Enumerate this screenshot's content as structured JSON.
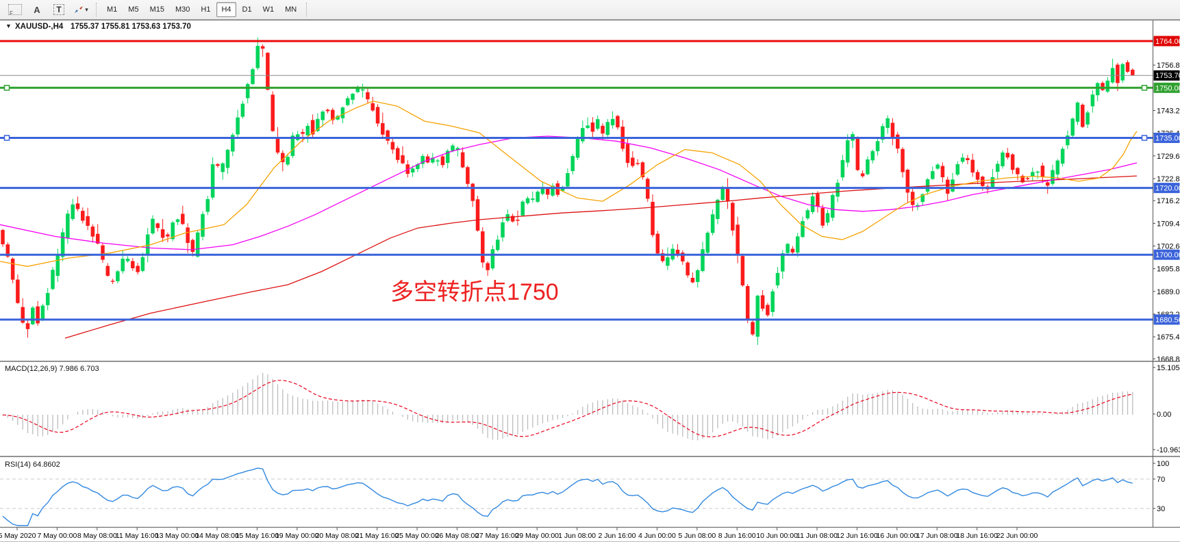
{
  "toolbar": {
    "template_icon_glyph": "F",
    "insert_text_glyph": "A",
    "text_label_glyph": "T",
    "dropdown_caret_glyph": "▾",
    "timeframes": [
      "M1",
      "M5",
      "M15",
      "M30",
      "H1",
      "H4",
      "D1",
      "W1",
      "MN"
    ],
    "active_timeframe": "H4"
  },
  "chart": {
    "collapse_glyph": "▼",
    "symbol_label": "XAUUSD-,H4",
    "ohlc_label": "1755.37 1755.81 1753.63 1753.70",
    "annotation": {
      "text": "多空转折点1750",
      "color": "#ee2020"
    },
    "current_price": {
      "label": "1753.70",
      "color": "#000000",
      "line_color": "#8c8c8c"
    },
    "levels": [
      {
        "label": "1764.00",
        "color": "#ee0b0b",
        "handles": false
      },
      {
        "label": "1750.00",
        "color": "#2fa12f",
        "handles": true
      },
      {
        "label": "1735.00",
        "color": "#3a63da",
        "handles": true
      },
      {
        "label": "1720.00",
        "color": "#3a63da",
        "handles": false
      },
      {
        "label": "1700.00",
        "color": "#3a63da",
        "handles": false
      },
      {
        "label": "1680.56",
        "color": "#3a63da",
        "handles": false
      }
    ],
    "y_ticks": [
      "1756.80",
      "1743.20",
      "1736.40",
      "1729.60",
      "1722.80",
      "1716.20",
      "1709.40",
      "1702.60",
      "1695.80",
      "1689.00",
      "1682.20",
      "1675.40",
      "1668.80"
    ],
    "x_labels": [
      "5 May 2020",
      "7 May 00:00",
      "8 May 08:00",
      "11 May 16:00",
      "13 May 00:00",
      "14 May 08:00",
      "15 May 16:00",
      "19 May 00:00",
      "20 May 08:00",
      "21 May 16:00",
      "25 May 00:00",
      "26 May 08:00",
      "27 May 16:00",
      "29 May 00:00",
      "1 Jun 08:00",
      "2 Jun 16:00",
      "4 Jun 00:00",
      "5 Jun 08:00",
      "8 Jun 16:00",
      "10 Jun 00:00",
      "11 Jun 08:00",
      "12 Jun 16:00",
      "16 Jun 00:00",
      "17 Jun 08:00",
      "18 Jun 16:00",
      "22 Jun 00:00"
    ]
  },
  "macd": {
    "label": "MACD(12,26,9) 7.986 6.703",
    "scale": [
      "15.105",
      "0.00",
      "-10.963"
    ],
    "histogram_color": "#bdbdbd",
    "signal_color": "#e8001c"
  },
  "rsi": {
    "label": "RSI(14) 64.8602",
    "scale": [
      "100",
      "70",
      "30"
    ],
    "level_lines": [
      70,
      30
    ],
    "line_color": "#3188e0"
  },
  "chart_data": {
    "type": "candlestick",
    "symbol": "XAUUSD",
    "timeframe": "H4",
    "title": "XAUUSD-,H4 1755.37 1755.81 1753.63 1753.70",
    "ohlc_current": {
      "open": 1755.37,
      "high": 1755.81,
      "low": 1753.63,
      "close": 1753.7
    },
    "y_range": [
      1668.3,
      1767.1
    ],
    "x_range": [
      "5 May 2020",
      "23 Jun 2020"
    ],
    "horizontal_levels": [
      1764.0,
      1750.0,
      1735.0,
      1720.0,
      1700.0,
      1680.56
    ],
    "up_color": "#00d45a",
    "down_color": "#fb1b1b",
    "price_path": [
      [
        0,
        1709
      ],
      [
        8,
        1703
      ],
      [
        18,
        1697
      ],
      [
        28,
        1687
      ],
      [
        36,
        1681
      ],
      [
        44,
        1678
      ],
      [
        52,
        1684
      ],
      [
        60,
        1680
      ],
      [
        68,
        1685
      ],
      [
        78,
        1692
      ],
      [
        92,
        1703
      ],
      [
        104,
        1712
      ],
      [
        112,
        1716
      ],
      [
        122,
        1712
      ],
      [
        134,
        1707
      ],
      [
        146,
        1703
      ],
      [
        158,
        1695
      ],
      [
        166,
        1690
      ],
      [
        176,
        1695
      ],
      [
        186,
        1700
      ],
      [
        196,
        1697
      ],
      [
        206,
        1695
      ],
      [
        216,
        1703
      ],
      [
        226,
        1710
      ],
      [
        236,
        1707
      ],
      [
        246,
        1704
      ],
      [
        256,
        1709
      ],
      [
        266,
        1712
      ],
      [
        276,
        1705
      ],
      [
        286,
        1700
      ],
      [
        296,
        1709
      ],
      [
        306,
        1716
      ],
      [
        316,
        1728
      ],
      [
        326,
        1724
      ],
      [
        336,
        1731
      ],
      [
        346,
        1737
      ],
      [
        356,
        1745
      ],
      [
        364,
        1749
      ],
      [
        372,
        1755
      ],
      [
        380,
        1762
      ],
      [
        386,
        1764
      ],
      [
        392,
        1756
      ],
      [
        398,
        1742
      ],
      [
        404,
        1734
      ],
      [
        412,
        1730
      ],
      [
        420,
        1726
      ],
      [
        428,
        1732
      ],
      [
        436,
        1738
      ],
      [
        444,
        1735
      ],
      [
        452,
        1740
      ],
      [
        460,
        1736
      ],
      [
        470,
        1742
      ],
      [
        480,
        1744
      ],
      [
        490,
        1740
      ],
      [
        500,
        1742
      ],
      [
        510,
        1746
      ],
      [
        520,
        1748
      ],
      [
        530,
        1750
      ],
      [
        540,
        1746
      ],
      [
        550,
        1743
      ],
      [
        560,
        1738
      ],
      [
        570,
        1734
      ],
      [
        580,
        1731
      ],
      [
        590,
        1727
      ],
      [
        600,
        1724
      ],
      [
        610,
        1726
      ],
      [
        620,
        1730
      ],
      [
        630,
        1727
      ],
      [
        640,
        1730
      ],
      [
        650,
        1727
      ],
      [
        660,
        1731
      ],
      [
        668,
        1733
      ],
      [
        676,
        1729
      ],
      [
        684,
        1724
      ],
      [
        692,
        1718
      ],
      [
        700,
        1710
      ],
      [
        708,
        1698
      ],
      [
        716,
        1695
      ],
      [
        724,
        1701
      ],
      [
        732,
        1706
      ],
      [
        740,
        1710
      ],
      [
        748,
        1713
      ],
      [
        756,
        1709
      ],
      [
        764,
        1713
      ],
      [
        772,
        1718
      ],
      [
        780,
        1715
      ],
      [
        788,
        1718
      ],
      [
        796,
        1721
      ],
      [
        804,
        1718
      ],
      [
        812,
        1721
      ],
      [
        820,
        1718
      ],
      [
        828,
        1722
      ],
      [
        836,
        1727
      ],
      [
        844,
        1732
      ],
      [
        852,
        1737
      ],
      [
        860,
        1740
      ],
      [
        868,
        1737
      ],
      [
        876,
        1740
      ],
      [
        884,
        1736
      ],
      [
        892,
        1740
      ],
      [
        900,
        1742
      ],
      [
        908,
        1736
      ],
      [
        916,
        1731
      ],
      [
        924,
        1726
      ],
      [
        932,
        1729
      ],
      [
        940,
        1724
      ],
      [
        948,
        1718
      ],
      [
        956,
        1708
      ],
      [
        964,
        1700
      ],
      [
        972,
        1697
      ],
      [
        980,
        1700
      ],
      [
        988,
        1703
      ],
      [
        996,
        1699
      ],
      [
        1004,
        1696
      ],
      [
        1012,
        1692
      ],
      [
        1020,
        1694
      ],
      [
        1028,
        1699
      ],
      [
        1036,
        1705
      ],
      [
        1044,
        1711
      ],
      [
        1052,
        1716
      ],
      [
        1060,
        1720
      ],
      [
        1068,
        1714
      ],
      [
        1076,
        1706
      ],
      [
        1084,
        1698
      ],
      [
        1092,
        1686
      ],
      [
        1100,
        1674
      ],
      [
        1106,
        1678
      ],
      [
        1112,
        1690
      ],
      [
        1118,
        1684
      ],
      [
        1124,
        1681
      ],
      [
        1130,
        1688
      ],
      [
        1136,
        1693
      ],
      [
        1144,
        1698
      ],
      [
        1152,
        1703
      ],
      [
        1160,
        1700
      ],
      [
        1168,
        1705
      ],
      [
        1176,
        1710
      ],
      [
        1184,
        1714
      ],
      [
        1192,
        1718
      ],
      [
        1200,
        1712
      ],
      [
        1208,
        1708
      ],
      [
        1216,
        1714
      ],
      [
        1224,
        1720
      ],
      [
        1232,
        1726
      ],
      [
        1240,
        1732
      ],
      [
        1248,
        1738
      ],
      [
        1254,
        1728
      ],
      [
        1260,
        1722
      ],
      [
        1268,
        1727
      ],
      [
        1276,
        1730
      ],
      [
        1284,
        1734
      ],
      [
        1292,
        1738
      ],
      [
        1300,
        1740
      ],
      [
        1308,
        1735
      ],
      [
        1316,
        1731
      ],
      [
        1324,
        1724
      ],
      [
        1332,
        1717
      ],
      [
        1340,
        1713
      ],
      [
        1348,
        1717
      ],
      [
        1356,
        1722
      ],
      [
        1364,
        1725
      ],
      [
        1372,
        1727
      ],
      [
        1380,
        1723
      ],
      [
        1388,
        1718
      ],
      [
        1396,
        1724
      ],
      [
        1404,
        1728
      ],
      [
        1412,
        1730
      ],
      [
        1420,
        1727
      ],
      [
        1428,
        1724
      ],
      [
        1436,
        1721
      ],
      [
        1444,
        1718
      ],
      [
        1452,
        1723
      ],
      [
        1460,
        1727
      ],
      [
        1468,
        1731
      ],
      [
        1476,
        1729
      ],
      [
        1484,
        1726
      ],
      [
        1492,
        1724
      ],
      [
        1500,
        1721
      ],
      [
        1508,
        1724
      ],
      [
        1516,
        1727
      ],
      [
        1524,
        1724
      ],
      [
        1532,
        1720
      ],
      [
        1540,
        1724
      ],
      [
        1548,
        1728
      ],
      [
        1556,
        1732
      ],
      [
        1564,
        1736
      ],
      [
        1572,
        1742
      ],
      [
        1578,
        1746
      ],
      [
        1584,
        1738
      ],
      [
        1590,
        1742
      ],
      [
        1598,
        1747
      ],
      [
        1606,
        1751
      ],
      [
        1612,
        1747
      ],
      [
        1618,
        1751
      ],
      [
        1626,
        1753
      ],
      [
        1631,
        1760
      ],
      [
        1636,
        1752
      ],
      [
        1641,
        1757
      ],
      [
        1647,
        1756
      ],
      [
        1653,
        1755
      ],
      [
        1660,
        1754.5
      ]
    ],
    "moving_averages": {
      "orange": {
        "color": "#f5a200",
        "points": [
          [
            0,
            1698
          ],
          [
            40,
            1696.5
          ],
          [
            100,
            1699
          ],
          [
            160,
            1700.5
          ],
          [
            220,
            1703
          ],
          [
            270,
            1706.5
          ],
          [
            327,
            1709
          ],
          [
            360,
            1715
          ],
          [
            400,
            1726
          ],
          [
            440,
            1734
          ],
          [
            480,
            1740
          ],
          [
            520,
            1744
          ],
          [
            545,
            1746
          ],
          [
            580,
            1744.5
          ],
          [
            620,
            1740
          ],
          [
            660,
            1738.5
          ],
          [
            700,
            1736.5
          ],
          [
            740,
            1730
          ],
          [
            790,
            1722
          ],
          [
            843,
            1717
          ],
          [
            880,
            1716
          ],
          [
            920,
            1721
          ],
          [
            960,
            1727
          ],
          [
            1000,
            1731.5
          ],
          [
            1040,
            1730.5
          ],
          [
            1080,
            1727
          ],
          [
            1110,
            1722
          ],
          [
            1140,
            1715
          ],
          [
            1170,
            1709
          ],
          [
            1200,
            1705.5
          ],
          [
            1230,
            1704.5
          ],
          [
            1260,
            1707
          ],
          [
            1290,
            1711
          ],
          [
            1320,
            1715
          ],
          [
            1350,
            1718
          ],
          [
            1390,
            1720.5
          ],
          [
            1430,
            1722
          ],
          [
            1470,
            1723
          ],
          [
            1510,
            1723.5
          ],
          [
            1545,
            1723
          ],
          [
            1575,
            1722
          ],
          [
            1605,
            1723
          ],
          [
            1625,
            1726
          ],
          [
            1640,
            1730
          ],
          [
            1650,
            1734
          ],
          [
            1660,
            1737
          ]
        ]
      },
      "magenta": {
        "color": "#f400f4",
        "points": [
          [
            0,
            1709
          ],
          [
            80,
            1705.5
          ],
          [
            150,
            1703.5
          ],
          [
            220,
            1702
          ],
          [
            280,
            1701.5
          ],
          [
            340,
            1703
          ],
          [
            380,
            1705.5
          ],
          [
            420,
            1708.5
          ],
          [
            460,
            1712
          ],
          [
            500,
            1716
          ],
          [
            540,
            1720
          ],
          [
            580,
            1724
          ],
          [
            620,
            1728
          ],
          [
            660,
            1731
          ],
          [
            700,
            1733
          ],
          [
            750,
            1735
          ],
          [
            800,
            1735.5
          ],
          [
            850,
            1735
          ],
          [
            900,
            1734
          ],
          [
            950,
            1732
          ],
          [
            1000,
            1729
          ],
          [
            1050,
            1725.5
          ],
          [
            1100,
            1721
          ],
          [
            1140,
            1717.5
          ],
          [
            1180,
            1715
          ],
          [
            1220,
            1713.5
          ],
          [
            1260,
            1713
          ],
          [
            1300,
            1713.5
          ],
          [
            1340,
            1714.5
          ],
          [
            1380,
            1716
          ],
          [
            1420,
            1718
          ],
          [
            1460,
            1719.5
          ],
          [
            1500,
            1721
          ],
          [
            1540,
            1722.5
          ],
          [
            1580,
            1724
          ],
          [
            1620,
            1725.5
          ],
          [
            1660,
            1727.5
          ]
        ]
      },
      "red": {
        "color": "#dd1111",
        "points": [
          [
            95,
            1675
          ],
          [
            160,
            1679
          ],
          [
            220,
            1682.5
          ],
          [
            300,
            1686
          ],
          [
            370,
            1689
          ],
          [
            420,
            1691
          ],
          [
            470,
            1695
          ],
          [
            520,
            1700
          ],
          [
            570,
            1705
          ],
          [
            610,
            1708
          ],
          [
            660,
            1709.5
          ],
          [
            700,
            1710.5
          ],
          [
            760,
            1711.5
          ],
          [
            820,
            1712.5
          ],
          [
            880,
            1713.2
          ],
          [
            940,
            1714
          ],
          [
            1000,
            1715
          ],
          [
            1060,
            1716
          ],
          [
            1110,
            1717
          ],
          [
            1170,
            1718
          ],
          [
            1230,
            1719
          ],
          [
            1290,
            1719.8
          ],
          [
            1350,
            1720.5
          ],
          [
            1410,
            1721.2
          ],
          [
            1470,
            1721.8
          ],
          [
            1530,
            1722.3
          ],
          [
            1600,
            1723
          ],
          [
            1660,
            1723.6
          ]
        ]
      }
    },
    "indicators": {
      "macd": {
        "params": "12,26,9",
        "value": 7.986,
        "signal_value": 6.703,
        "scale_max": 15.105,
        "scale_min": -10.963
      },
      "rsi": {
        "params": "14",
        "value": 64.8602,
        "levels": [
          70,
          30
        ],
        "scale": [
          100,
          70,
          30
        ]
      }
    }
  }
}
